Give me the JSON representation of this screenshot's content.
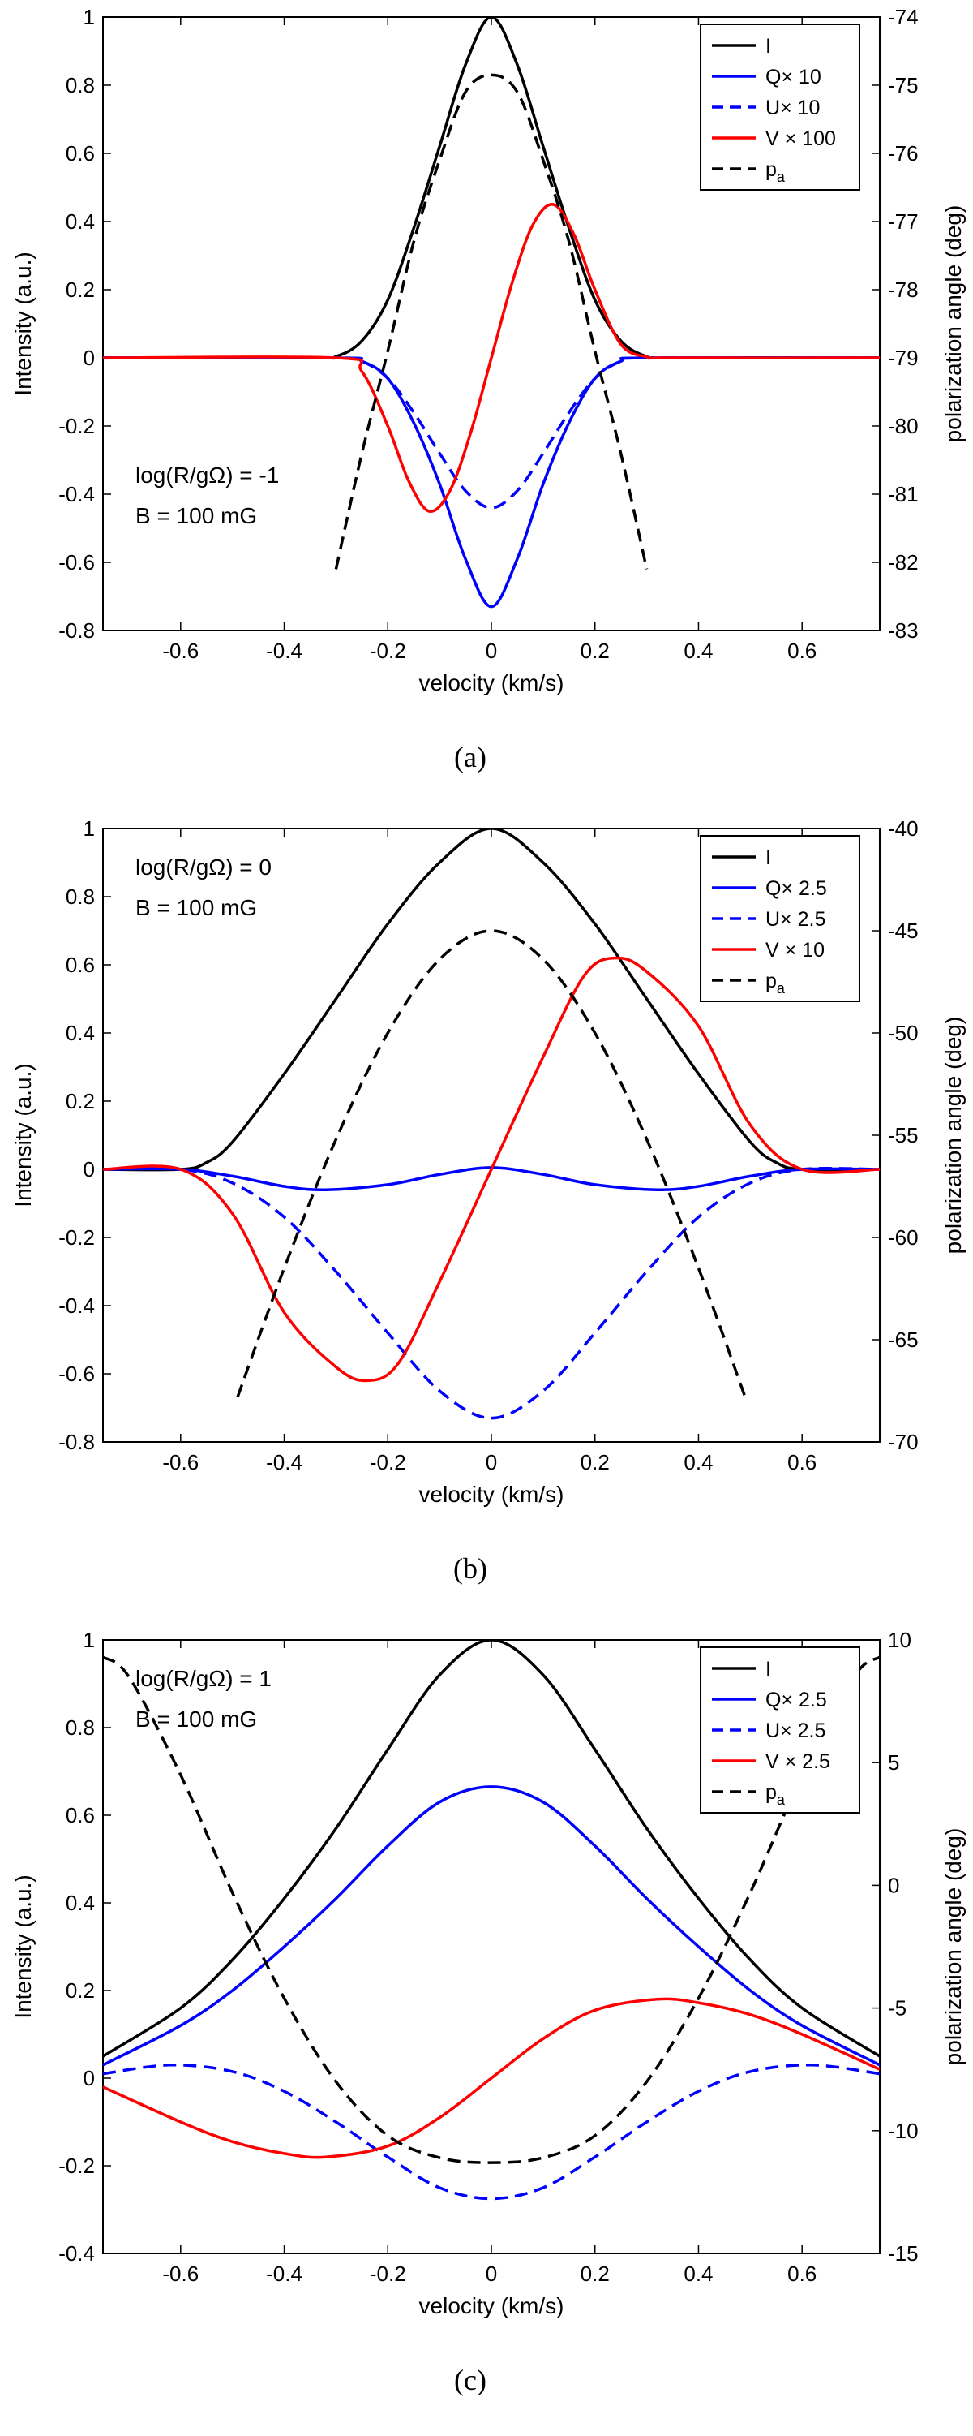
{
  "chart_data": [
    {
      "type": "line",
      "caption": "(a)",
      "xlabel": "velocity (km/s)",
      "ylabel": "Intensity (a.u.)",
      "y2label": "polarization angle (deg)",
      "xlim": [
        -0.75,
        0.75
      ],
      "ylim": [
        -0.8,
        1
      ],
      "y2lim": [
        -83,
        -74
      ],
      "xticks": [
        -0.6,
        -0.4,
        -0.2,
        0,
        0.2,
        0.4,
        0.6
      ],
      "xtick_labels": [
        "-0.6",
        "-0.4",
        "-0.2",
        "0",
        "0.2",
        "0.4",
        "0.6"
      ],
      "yticks": [
        -0.8,
        -0.6,
        -0.4,
        -0.2,
        0,
        0.2,
        0.4,
        0.6,
        0.8,
        1
      ],
      "ytick_labels": [
        "-0.8",
        "-0.6",
        "-0.4",
        "-0.2",
        "0",
        "0.2",
        "0.4",
        "0.6",
        "0.8",
        "1"
      ],
      "y2ticks": [
        -83,
        -82,
        -81,
        -80,
        -79,
        -78,
        -77,
        -76,
        -75,
        -74
      ],
      "y2tick_labels": [
        "-83",
        "-82",
        "-81",
        "-80",
        "-79",
        "-78",
        "-77",
        "-76",
        "-75",
        "-74"
      ],
      "annotations": [
        "log(R/gΩ) = -1",
        "B = 100 mG"
      ],
      "annotation_placement": "lower-left",
      "legend_placement": "top-right",
      "series": [
        {
          "name": "I",
          "label_main": "I",
          "label_sub": "",
          "color": "#000000",
          "dash": "solid",
          "axis": "left",
          "x": [
            -0.75,
            -0.35,
            -0.3,
            -0.25,
            -0.2,
            -0.15,
            -0.1,
            -0.05,
            0,
            0.05,
            0.1,
            0.15,
            0.2,
            0.25,
            0.3,
            0.35,
            0.75
          ],
          "y": [
            0,
            0,
            0.004,
            0.05,
            0.17,
            0.38,
            0.62,
            0.86,
            1.0,
            0.86,
            0.62,
            0.38,
            0.17,
            0.05,
            0.004,
            0,
            0
          ]
        },
        {
          "name": "Q×10",
          "label_main": "Q× 10",
          "label_sub": "",
          "color": "#0000ff",
          "dash": "solid",
          "axis": "left",
          "x": [
            -0.75,
            -0.3,
            -0.25,
            -0.2,
            -0.15,
            -0.1,
            -0.05,
            0,
            0.05,
            0.1,
            0.15,
            0.2,
            0.25,
            0.3,
            0.75
          ],
          "y": [
            0,
            0,
            -0.01,
            -0.06,
            -0.19,
            -0.37,
            -0.59,
            -0.73,
            -0.59,
            -0.37,
            -0.19,
            -0.06,
            -0.01,
            0,
            0
          ]
        },
        {
          "name": "U×10",
          "label_main": "U× 10",
          "label_sub": "",
          "color": "#0000ff",
          "dash": "dashed",
          "axis": "left",
          "x": [
            -0.75,
            -0.3,
            -0.25,
            -0.2,
            -0.15,
            -0.1,
            -0.05,
            0,
            0.05,
            0.1,
            0.15,
            0.2,
            0.25,
            0.3,
            0.75
          ],
          "y": [
            0,
            0,
            -0.01,
            -0.06,
            -0.16,
            -0.28,
            -0.39,
            -0.44,
            -0.39,
            -0.28,
            -0.16,
            -0.06,
            -0.01,
            0,
            0
          ]
        },
        {
          "name": "V×100",
          "label_main": "V × 100",
          "label_sub": "",
          "color": "#ff0000",
          "dash": "solid",
          "axis": "left",
          "x": [
            -0.75,
            -0.3,
            -0.25,
            -0.2,
            -0.16,
            -0.12,
            -0.08,
            -0.04,
            0,
            0.04,
            0.08,
            0.12,
            0.16,
            0.2,
            0.25,
            0.3,
            0.35,
            0.75
          ],
          "y": [
            0,
            0,
            -0.04,
            -0.2,
            -0.36,
            -0.45,
            -0.39,
            -0.22,
            0,
            0.22,
            0.39,
            0.45,
            0.36,
            0.2,
            0.04,
            0.003,
            0,
            0
          ]
        },
        {
          "name": "pa",
          "label_main": "p",
          "label_sub": "a",
          "color": "#000000",
          "dash": "dashed",
          "axis": "right",
          "x": [
            -0.3,
            -0.25,
            -0.2,
            -0.15,
            -0.1,
            -0.05,
            0,
            0.05,
            0.1,
            0.15,
            0.2,
            0.25,
            0.3
          ],
          "y": [
            -82.1,
            -80.4,
            -78.9,
            -77.3,
            -76.1,
            -75.1,
            -74.85,
            -75.1,
            -76.1,
            -77.3,
            -78.9,
            -80.4,
            -82.1
          ]
        }
      ]
    },
    {
      "type": "line",
      "caption": "(b)",
      "xlabel": "velocity (km/s)",
      "ylabel": "Intensity (a.u.)",
      "y2label": "polarization angle (deg)",
      "xlim": [
        -0.75,
        0.75
      ],
      "ylim": [
        -0.8,
        1
      ],
      "y2lim": [
        -70,
        -40
      ],
      "xticks": [
        -0.6,
        -0.4,
        -0.2,
        0,
        0.2,
        0.4,
        0.6
      ],
      "xtick_labels": [
        "-0.6",
        "-0.4",
        "-0.2",
        "0",
        "0.2",
        "0.4",
        "0.6"
      ],
      "yticks": [
        -0.8,
        -0.6,
        -0.4,
        -0.2,
        0,
        0.2,
        0.4,
        0.6,
        0.8,
        1
      ],
      "ytick_labels": [
        "-0.8",
        "-0.6",
        "-0.4",
        "-0.2",
        "0",
        "0.2",
        "0.4",
        "0.6",
        "0.8",
        "1"
      ],
      "y2ticks": [
        -70,
        -65,
        -60,
        -55,
        -50,
        -45,
        -40
      ],
      "y2tick_labels": [
        "-70",
        "-65",
        "-60",
        "-55",
        "-50",
        "-45",
        "-40"
      ],
      "annotations": [
        "log(R/gΩ) = 0",
        "B = 100 mG"
      ],
      "annotation_placement": "top-left",
      "legend_placement": "top-right",
      "series": [
        {
          "name": "I",
          "label_main": "I",
          "label_sub": "",
          "color": "#000000",
          "dash": "solid",
          "axis": "left",
          "x": [
            -0.75,
            -0.6,
            -0.55,
            -0.5,
            -0.4,
            -0.3,
            -0.2,
            -0.1,
            0,
            0.1,
            0.2,
            0.3,
            0.4,
            0.5,
            0.55,
            0.6,
            0.75
          ],
          "y": [
            0,
            0,
            0.02,
            0.08,
            0.28,
            0.5,
            0.72,
            0.9,
            1.0,
            0.9,
            0.72,
            0.5,
            0.28,
            0.08,
            0.02,
            0,
            0
          ]
        },
        {
          "name": "Q×2.5",
          "label_main": "Q× 2.5",
          "label_sub": "",
          "color": "#0000ff",
          "dash": "solid",
          "axis": "left",
          "x": [
            -0.75,
            -0.6,
            -0.5,
            -0.4,
            -0.32,
            -0.2,
            -0.1,
            0,
            0.1,
            0.2,
            0.32,
            0.4,
            0.5,
            0.6,
            0.75
          ],
          "y": [
            0,
            0,
            -0.02,
            -0.05,
            -0.06,
            -0.045,
            -0.015,
            0.005,
            -0.015,
            -0.045,
            -0.06,
            -0.05,
            -0.02,
            0,
            0
          ]
        },
        {
          "name": "U×2.5",
          "label_main": "U× 2.5",
          "label_sub": "",
          "color": "#0000ff",
          "dash": "dashed",
          "axis": "left",
          "x": [
            -0.75,
            -0.6,
            -0.5,
            -0.4,
            -0.3,
            -0.2,
            -0.1,
            0,
            0.1,
            0.2,
            0.3,
            0.4,
            0.5,
            0.6,
            0.75
          ],
          "y": [
            0,
            0,
            -0.04,
            -0.14,
            -0.3,
            -0.48,
            -0.65,
            -0.73,
            -0.65,
            -0.48,
            -0.3,
            -0.14,
            -0.04,
            0,
            0
          ]
        },
        {
          "name": "V×10",
          "label_main": "V × 10",
          "label_sub": "",
          "color": "#ff0000",
          "dash": "solid",
          "axis": "left",
          "x": [
            -0.75,
            -0.6,
            -0.5,
            -0.4,
            -0.3,
            -0.24,
            -0.18,
            -0.1,
            0,
            0.1,
            0.18,
            0.24,
            0.3,
            0.4,
            0.5,
            0.6,
            0.75
          ],
          "y": [
            0,
            0,
            -0.13,
            -0.42,
            -0.58,
            -0.62,
            -0.57,
            -0.33,
            0,
            0.33,
            0.57,
            0.62,
            0.58,
            0.42,
            0.13,
            0,
            0
          ]
        },
        {
          "name": "pa",
          "label_main": "p",
          "label_sub": "a",
          "color": "#000000",
          "dash": "dashed",
          "axis": "right",
          "x": [
            -0.49,
            -0.4,
            -0.3,
            -0.2,
            -0.1,
            0,
            0.1,
            0.2,
            0.3,
            0.4,
            0.49
          ],
          "y": [
            -67.8,
            -61.5,
            -55.2,
            -50.0,
            -46.4,
            -45.0,
            -46.4,
            -50.0,
            -55.2,
            -61.5,
            -67.8
          ]
        }
      ]
    },
    {
      "type": "line",
      "caption": "(c)",
      "xlabel": "velocity (km/s)",
      "ylabel": "Intensity (a.u.)",
      "y2label": "polarization angle (deg)",
      "xlim": [
        -0.75,
        0.75
      ],
      "ylim": [
        -0.4,
        1
      ],
      "y2lim": [
        -15,
        10
      ],
      "xticks": [
        -0.6,
        -0.4,
        -0.2,
        0,
        0.2,
        0.4,
        0.6
      ],
      "xtick_labels": [
        "-0.6",
        "-0.4",
        "-0.2",
        "0",
        "0.2",
        "0.4",
        "0.6"
      ],
      "yticks": [
        -0.4,
        -0.2,
        0,
        0.2,
        0.4,
        0.6,
        0.8,
        1
      ],
      "ytick_labels": [
        "-0.4",
        "-0.2",
        "0",
        "0.2",
        "0.4",
        "0.6",
        "0.8",
        "1"
      ],
      "y2ticks": [
        -15,
        -10,
        -5,
        0,
        5,
        10
      ],
      "y2tick_labels": [
        "-15",
        "-10",
        "-5",
        "0",
        "5",
        "10"
      ],
      "annotations": [
        "log(R/gΩ) = 1",
        "B = 100 mG"
      ],
      "annotation_placement": "top-left",
      "legend_placement": "top-right",
      "series": [
        {
          "name": "I",
          "label_main": "I",
          "label_sub": "",
          "color": "#000000",
          "dash": "solid",
          "axis": "left",
          "x": [
            -0.75,
            -0.6,
            -0.5,
            -0.4,
            -0.3,
            -0.2,
            -0.1,
            0,
            0.1,
            0.2,
            0.3,
            0.4,
            0.5,
            0.6,
            0.75
          ],
          "y": [
            0.05,
            0.16,
            0.27,
            0.41,
            0.57,
            0.75,
            0.92,
            1.0,
            0.92,
            0.75,
            0.57,
            0.41,
            0.27,
            0.16,
            0.05
          ]
        },
        {
          "name": "Q×2.5",
          "label_main": "Q× 2.5",
          "label_sub": "",
          "color": "#0000ff",
          "dash": "solid",
          "axis": "left",
          "x": [
            -0.75,
            -0.6,
            -0.5,
            -0.4,
            -0.3,
            -0.2,
            -0.1,
            0,
            0.1,
            0.2,
            0.3,
            0.4,
            0.5,
            0.6,
            0.75
          ],
          "y": [
            0.03,
            0.12,
            0.2,
            0.3,
            0.41,
            0.53,
            0.63,
            0.665,
            0.63,
            0.53,
            0.41,
            0.3,
            0.2,
            0.12,
            0.03
          ]
        },
        {
          "name": "U×2.5",
          "label_main": "U× 2.5",
          "label_sub": "",
          "color": "#0000ff",
          "dash": "dashed",
          "axis": "left",
          "x": [
            -0.75,
            -0.62,
            -0.5,
            -0.4,
            -0.3,
            -0.2,
            -0.1,
            0,
            0.1,
            0.2,
            0.3,
            0.4,
            0.5,
            0.62,
            0.75
          ],
          "y": [
            0.01,
            0.03,
            0.015,
            -0.03,
            -0.1,
            -0.18,
            -0.25,
            -0.275,
            -0.25,
            -0.18,
            -0.1,
            -0.03,
            0.015,
            0.03,
            0.01
          ]
        },
        {
          "name": "V×2.5",
          "label_main": "V × 2.5",
          "label_sub": "",
          "color": "#ff0000",
          "dash": "solid",
          "axis": "left",
          "x": [
            -0.75,
            -0.6,
            -0.5,
            -0.4,
            -0.32,
            -0.2,
            -0.1,
            0,
            0.1,
            0.2,
            0.32,
            0.4,
            0.5,
            0.6,
            0.75
          ],
          "y": [
            -0.02,
            -0.1,
            -0.145,
            -0.172,
            -0.18,
            -0.155,
            -0.09,
            0,
            0.09,
            0.155,
            0.18,
            0.172,
            0.145,
            0.1,
            0.02
          ]
        },
        {
          "name": "pa",
          "label_main": "p",
          "label_sub": "a",
          "color": "#000000",
          "dash": "dashed",
          "axis": "right",
          "x": [
            -0.75,
            -0.7,
            -0.6,
            -0.5,
            -0.4,
            -0.3,
            -0.2,
            -0.1,
            0,
            0.1,
            0.2,
            0.3,
            0.4,
            0.5,
            0.6,
            0.7,
            0.75
          ],
          "y": [
            9.3,
            8.5,
            4.5,
            -0.3,
            -4.6,
            -8.0,
            -10.2,
            -11.1,
            -11.3,
            -11.1,
            -10.2,
            -8.0,
            -4.6,
            -0.3,
            4.5,
            8.5,
            9.3
          ]
        }
      ]
    }
  ]
}
